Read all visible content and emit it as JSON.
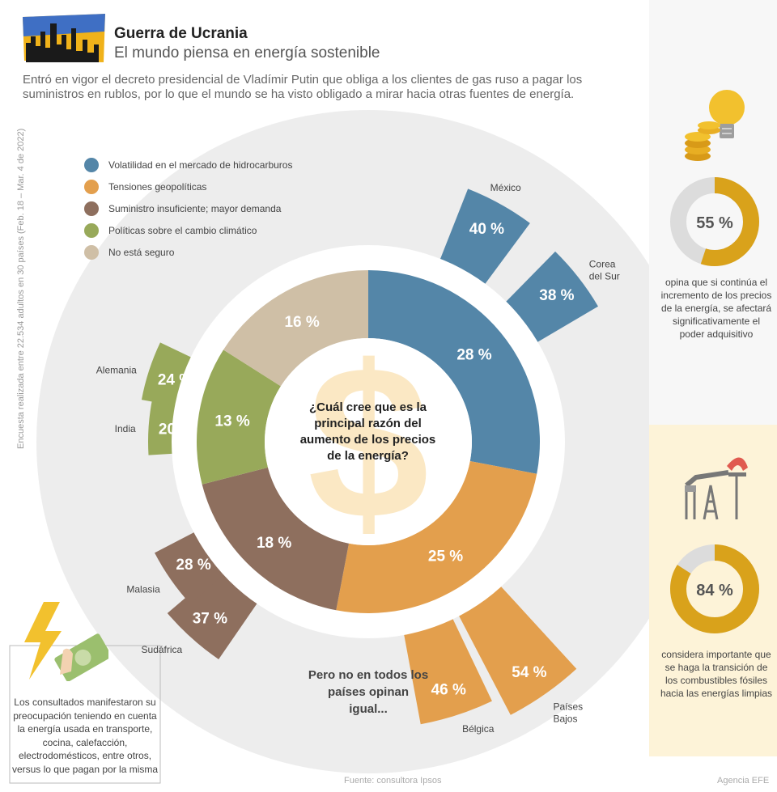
{
  "header": {
    "title": "Guerra de Ucrania",
    "subtitle": "El mundo piensa en energía sostenible",
    "intro": "Entró en vigor el decreto presidencial de Vladímir Putin que obliga a los clientes de gas ruso a pagar los suministros en rublos, por lo que el mundo se ha visto obligado a mirar hacia otras fuentes de energía."
  },
  "survey_note": "Encuesta realizada entre 22.534 adultos en 30 países (Feb. 18 – Mar. 4 de 2022)",
  "center_question": "¿Cuál cree que es la principal razón del aumento de los precios de la energía?",
  "note_countries": "Pero no en todos los países opinan igual...",
  "left_note": "Los consultados manifestaron su preocupación teniendo en cuenta la energía usada en transporte, cocina, calefacción, electrodomésticos, entre otros, versus lo que pagan por la misma",
  "footer": {
    "source": "Fuente: consultora Ipsos",
    "agency": "Agencia EFE"
  },
  "side": {
    "stat1": {
      "value": "55 %",
      "fraction": 0.55,
      "caption": "opina que si continúa el incremento de los precios de la energía, se afectará significativamente el poder adquisitivo"
    },
    "stat2": {
      "value": "84 %",
      "fraction": 0.84,
      "caption": "considera importante que se haga la transición de los combustibles fósiles hacia las energías limpias"
    }
  },
  "colors": {
    "blue": "#5486a8",
    "orange": "#e39f4d",
    "brown": "#8e6f5e",
    "green": "#98a95a",
    "beige": "#cfbfa6",
    "gold": "#d9a21b",
    "grey_ring": "#dcdcdc",
    "bg_circle": "#ededed",
    "cream": "#fdf3d8"
  },
  "icons": [
    "city-flag-icon",
    "coins-lightbulb-icon",
    "oil-pump-icon",
    "lightning-money-icon",
    "dollar-sign-icon"
  ],
  "chart_data": {
    "type": "pie",
    "legend_position": "top-left",
    "legend": [
      "Volatilidad en el mercado de hidrocarburos",
      "Tensiones geopolíticas",
      "Suministro insuficiente; mayor demanda",
      "Políticas sobre el cambio climático",
      "No está seguro"
    ],
    "slices": [
      {
        "category": "Volatilidad en el mercado de hidrocarburos",
        "value": 28,
        "label": "28 %",
        "color": "#5486a8"
      },
      {
        "category": "Tensiones geopolíticas",
        "value": 25,
        "label": "25 %",
        "color": "#e39f4d"
      },
      {
        "category": "Suministro insuficiente; mayor demanda",
        "value": 18,
        "label": "18 %",
        "color": "#8e6f5e"
      },
      {
        "category": "Políticas sobre el cambio climático",
        "value": 13,
        "label": "13 %",
        "color": "#98a95a"
      },
      {
        "category": "No está seguro",
        "value": 16,
        "label": "16 %",
        "color": "#cfbfa6"
      }
    ],
    "countries": [
      {
        "country": "México",
        "value": 40,
        "label": "40 %",
        "category": "Volatilidad en el mercado de hidrocarburos"
      },
      {
        "country": "Corea del Sur",
        "value": 38,
        "label": "38 %",
        "category": "Volatilidad en el mercado de hidrocarburos"
      },
      {
        "country": "Países Bajos",
        "value": 54,
        "label": "54 %",
        "category": "Tensiones geopolíticas"
      },
      {
        "country": "Bélgica",
        "value": 46,
        "label": "46 %",
        "category": "Tensiones geopolíticas"
      },
      {
        "country": "Sudáfrica",
        "value": 37,
        "label": "37 %",
        "category": "Suministro insuficiente; mayor demanda"
      },
      {
        "country": "Malasia",
        "value": 28,
        "label": "28 %",
        "category": "Suministro insuficiente; mayor demanda"
      },
      {
        "country": "India",
        "value": 20,
        "label": "20 %",
        "category": "Políticas sobre el cambio climático"
      },
      {
        "country": "Alemania",
        "value": 24,
        "label": "24 %",
        "category": "Políticas sobre el cambio climático"
      }
    ]
  }
}
